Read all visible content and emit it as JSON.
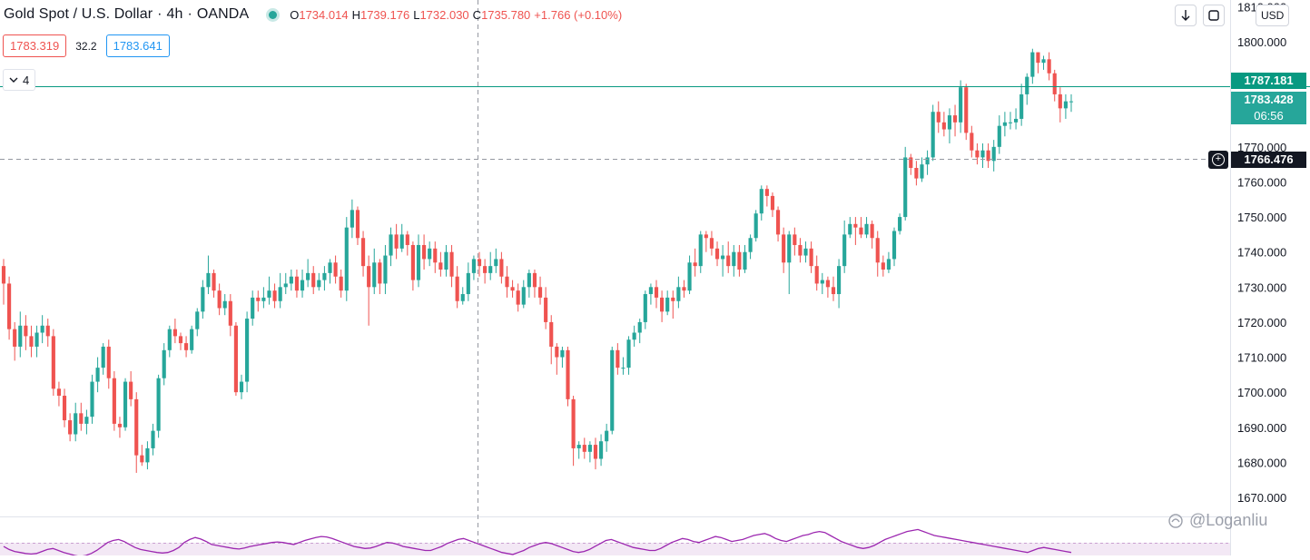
{
  "legend": {
    "symbol": "Gold Spot / U.S. Dollar",
    "sep": "·",
    "interval": "4h",
    "broker": "OANDA",
    "o_key": "O",
    "o": "1734.014",
    "h_key": "H",
    "h": "1739.176",
    "l_key": "L",
    "l": "1732.030",
    "c_key": "C",
    "c": "1735.780",
    "change": "+1.766 (+0.10%)"
  },
  "trade": {
    "sell": "1783.319",
    "spread": "32.2",
    "buy": "1783.641"
  },
  "indicators_toggle": {
    "count": "4"
  },
  "toolbar": {
    "currency": "USD"
  },
  "price_tags": {
    "horizontal_line": "1787.181",
    "last_price": "1783.428",
    "countdown": "06:56",
    "crosshair": "1766.476"
  },
  "watermark": "@Loganliu",
  "colors": {
    "up": "#26a69a",
    "down": "#ef5350",
    "line": "#089981",
    "oscillator": "#9c27b0"
  },
  "chart_data": {
    "type": "candlestick",
    "ylim": [
      1663,
      1812
    ],
    "y_ticks": [
      "1670.000",
      "1680.000",
      "1690.000",
      "1700.000",
      "1710.000",
      "1720.000",
      "1730.000",
      "1740.000",
      "1750.000",
      "1760.000",
      "1770.000",
      "1780.000",
      "1800.000",
      "1810.000"
    ],
    "y_tick_values": [
      1670,
      1680,
      1690,
      1700,
      1710,
      1720,
      1730,
      1740,
      1750,
      1760,
      1770,
      1780,
      1800,
      1810
    ],
    "horizontal_line": 1787.181,
    "crosshair_price": 1766.476,
    "last_price": 1783.428,
    "candles": [
      [
        1736,
        1731,
        1738,
        1725
      ],
      [
        1731,
        1718,
        1733,
        1715
      ],
      [
        1718,
        1713,
        1720,
        1709
      ],
      [
        1713,
        1719,
        1723,
        1710
      ],
      [
        1719,
        1716,
        1722,
        1712
      ],
      [
        1716,
        1713,
        1719,
        1710
      ],
      [
        1713,
        1717,
        1719,
        1710
      ],
      [
        1717,
        1719,
        1722,
        1714
      ],
      [
        1719,
        1716,
        1721,
        1713
      ],
      [
        1716,
        1701,
        1718,
        1699
      ],
      [
        1701,
        1699,
        1703,
        1696
      ],
      [
        1699,
        1692,
        1701,
        1690
      ],
      [
        1692,
        1688,
        1694,
        1686
      ],
      [
        1688,
        1694,
        1697,
        1686
      ],
      [
        1694,
        1691,
        1697,
        1689
      ],
      [
        1691,
        1693,
        1695,
        1688
      ],
      [
        1693,
        1703,
        1705,
        1691
      ],
      [
        1703,
        1707,
        1710,
        1700
      ],
      [
        1707,
        1713,
        1714,
        1705
      ],
      [
        1713,
        1704,
        1715,
        1701
      ],
      [
        1704,
        1691,
        1706,
        1689
      ],
      [
        1691,
        1690,
        1693,
        1687
      ],
      [
        1690,
        1703,
        1704,
        1689
      ],
      [
        1703,
        1698,
        1706,
        1696
      ],
      [
        1698,
        1682,
        1700,
        1677
      ],
      [
        1682,
        1680,
        1685,
        1679
      ],
      [
        1680,
        1684,
        1686,
        1678
      ],
      [
        1684,
        1689,
        1691,
        1682
      ],
      [
        1689,
        1704,
        1705,
        1687
      ],
      [
        1704,
        1712,
        1714,
        1702
      ],
      [
        1712,
        1718,
        1719,
        1710
      ],
      [
        1718,
        1716,
        1721,
        1714
      ],
      [
        1716,
        1714,
        1717,
        1712
      ],
      [
        1714,
        1712,
        1716,
        1710
      ],
      [
        1712,
        1718,
        1719,
        1711
      ],
      [
        1718,
        1723,
        1724,
        1716
      ],
      [
        1723,
        1730,
        1732,
        1721
      ],
      [
        1730,
        1734,
        1739,
        1728
      ],
      [
        1734,
        1729,
        1735,
        1727
      ],
      [
        1729,
        1724,
        1731,
        1722
      ],
      [
        1724,
        1726,
        1728,
        1722
      ],
      [
        1726,
        1719,
        1728,
        1716
      ],
      [
        1719,
        1700,
        1720,
        1699
      ],
      [
        1700,
        1703,
        1705,
        1698
      ],
      [
        1703,
        1721,
        1723,
        1700
      ],
      [
        1721,
        1727,
        1729,
        1719
      ],
      [
        1727,
        1726,
        1729,
        1723
      ],
      [
        1726,
        1727,
        1730,
        1724
      ],
      [
        1727,
        1729,
        1733,
        1725
      ],
      [
        1729,
        1726,
        1731,
        1724
      ],
      [
        1726,
        1730,
        1734,
        1724
      ],
      [
        1730,
        1731,
        1734,
        1728
      ],
      [
        1731,
        1733,
        1735,
        1729
      ],
      [
        1733,
        1729,
        1735,
        1727
      ],
      [
        1729,
        1732,
        1735,
        1727
      ],
      [
        1732,
        1734,
        1738,
        1730
      ],
      [
        1734,
        1730,
        1736,
        1728
      ],
      [
        1730,
        1732,
        1734,
        1729
      ],
      [
        1732,
        1734,
        1736,
        1729
      ],
      [
        1734,
        1737,
        1738,
        1731
      ],
      [
        1737,
        1733,
        1739,
        1731
      ],
      [
        1733,
        1729,
        1735,
        1727
      ],
      [
        1729,
        1747,
        1750,
        1726
      ],
      [
        1747,
        1752,
        1755,
        1744
      ],
      [
        1752,
        1744,
        1753,
        1742
      ],
      [
        1744,
        1736,
        1746,
        1733
      ],
      [
        1736,
        1730,
        1739,
        1719
      ],
      [
        1730,
        1737,
        1741,
        1728
      ],
      [
        1737,
        1731,
        1738,
        1728
      ],
      [
        1731,
        1739,
        1742,
        1728
      ],
      [
        1739,
        1745,
        1747,
        1736
      ],
      [
        1745,
        1741,
        1748,
        1738
      ],
      [
        1741,
        1745,
        1748,
        1740
      ],
      [
        1745,
        1742,
        1746,
        1739
      ],
      [
        1742,
        1732,
        1743,
        1729
      ],
      [
        1732,
        1742,
        1745,
        1730
      ],
      [
        1742,
        1738,
        1745,
        1735
      ],
      [
        1738,
        1741,
        1743,
        1736
      ],
      [
        1741,
        1737,
        1743,
        1734
      ],
      [
        1737,
        1735,
        1740,
        1733
      ],
      [
        1735,
        1740,
        1742,
        1733
      ],
      [
        1740,
        1733,
        1742,
        1730
      ],
      [
        1733,
        1726,
        1736,
        1724
      ],
      [
        1726,
        1728,
        1730,
        1725
      ],
      [
        1728,
        1734,
        1737,
        1726
      ],
      [
        1734,
        1738,
        1739,
        1732
      ],
      [
        1738,
        1736,
        1740,
        1733
      ],
      [
        1736,
        1734,
        1738,
        1731
      ],
      [
        1734,
        1736,
        1740,
        1732
      ],
      [
        1736,
        1738,
        1741,
        1734
      ],
      [
        1738,
        1733,
        1740,
        1731
      ],
      [
        1733,
        1730,
        1736,
        1727
      ],
      [
        1730,
        1729,
        1732,
        1727
      ],
      [
        1729,
        1725,
        1731,
        1723
      ],
      [
        1725,
        1730,
        1732,
        1724
      ],
      [
        1730,
        1734,
        1735,
        1727
      ],
      [
        1734,
        1730,
        1735,
        1727
      ],
      [
        1730,
        1727,
        1733,
        1725
      ],
      [
        1727,
        1720,
        1730,
        1718
      ],
      [
        1720,
        1713,
        1722,
        1708
      ],
      [
        1713,
        1710,
        1714,
        1705
      ],
      [
        1710,
        1712,
        1713,
        1707
      ],
      [
        1712,
        1698,
        1713,
        1696
      ],
      [
        1698,
        1684,
        1699,
        1679
      ],
      [
        1684,
        1685,
        1686,
        1681
      ],
      [
        1685,
        1683,
        1687,
        1681
      ],
      [
        1683,
        1685,
        1686,
        1680
      ],
      [
        1685,
        1681,
        1687,
        1678
      ],
      [
        1681,
        1686,
        1688,
        1679
      ],
      [
        1686,
        1689,
        1691,
        1683
      ],
      [
        1689,
        1712,
        1713,
        1688
      ],
      [
        1712,
        1707,
        1714,
        1705
      ],
      [
        1707,
        1707,
        1710,
        1705
      ],
      [
        1707,
        1715,
        1716,
        1705
      ],
      [
        1715,
        1717,
        1719,
        1713
      ],
      [
        1717,
        1720,
        1721,
        1714
      ],
      [
        1720,
        1728,
        1729,
        1718
      ],
      [
        1728,
        1730,
        1731,
        1725
      ],
      [
        1730,
        1727,
        1732,
        1724
      ],
      [
        1727,
        1723,
        1729,
        1720
      ],
      [
        1723,
        1727,
        1729,
        1722
      ],
      [
        1727,
        1726,
        1729,
        1721
      ],
      [
        1726,
        1730,
        1733,
        1724
      ],
      [
        1730,
        1729,
        1732,
        1727
      ],
      [
        1729,
        1737,
        1739,
        1728
      ],
      [
        1737,
        1736,
        1741,
        1733
      ],
      [
        1736,
        1745,
        1746,
        1734
      ],
      [
        1745,
        1744,
        1746,
        1740
      ],
      [
        1744,
        1741,
        1746,
        1739
      ],
      [
        1741,
        1738,
        1743,
        1736
      ],
      [
        1738,
        1739,
        1742,
        1733
      ],
      [
        1739,
        1736,
        1743,
        1734
      ],
      [
        1736,
        1740,
        1742,
        1733
      ],
      [
        1740,
        1735,
        1742,
        1733
      ],
      [
        1735,
        1740,
        1742,
        1734
      ],
      [
        1740,
        1744,
        1745,
        1738
      ],
      [
        1744,
        1751,
        1752,
        1743
      ],
      [
        1751,
        1758,
        1759,
        1749
      ],
      [
        1758,
        1756,
        1759,
        1753
      ],
      [
        1756,
        1752,
        1757,
        1750
      ],
      [
        1752,
        1745,
        1753,
        1743
      ],
      [
        1745,
        1737,
        1747,
        1734
      ],
      [
        1737,
        1745,
        1746,
        1728
      ],
      [
        1745,
        1742,
        1747,
        1739
      ],
      [
        1742,
        1739,
        1744,
        1737
      ],
      [
        1739,
        1741,
        1743,
        1737
      ],
      [
        1741,
        1736,
        1743,
        1734
      ],
      [
        1736,
        1731,
        1739,
        1729
      ],
      [
        1731,
        1732,
        1734,
        1728
      ],
      [
        1732,
        1730,
        1733,
        1727
      ],
      [
        1730,
        1728,
        1733,
        1726
      ],
      [
        1728,
        1736,
        1738,
        1724
      ],
      [
        1736,
        1745,
        1749,
        1734
      ],
      [
        1745,
        1748,
        1750,
        1744
      ],
      [
        1748,
        1747,
        1750,
        1742
      ],
      [
        1747,
        1745,
        1750,
        1744
      ],
      [
        1745,
        1748,
        1750,
        1744
      ],
      [
        1748,
        1744,
        1749,
        1741
      ],
      [
        1744,
        1737,
        1746,
        1733
      ],
      [
        1737,
        1735,
        1739,
        1733
      ],
      [
        1735,
        1738,
        1740,
        1734
      ],
      [
        1738,
        1746,
        1747,
        1736
      ],
      [
        1746,
        1750,
        1751,
        1745
      ],
      [
        1750,
        1767,
        1770,
        1749
      ],
      [
        1767,
        1764,
        1768,
        1762
      ],
      [
        1764,
        1761,
        1766,
        1759
      ],
      [
        1761,
        1765,
        1767,
        1760
      ],
      [
        1765,
        1767,
        1769,
        1762
      ],
      [
        1767,
        1780,
        1782,
        1766
      ],
      [
        1780,
        1777,
        1783,
        1774
      ],
      [
        1777,
        1775,
        1780,
        1773
      ],
      [
        1775,
        1779,
        1781,
        1771
      ],
      [
        1779,
        1777,
        1782,
        1773
      ],
      [
        1777,
        1787,
        1789,
        1774
      ],
      [
        1787,
        1774,
        1788,
        1772
      ],
      [
        1774,
        1769,
        1776,
        1767
      ],
      [
        1769,
        1767,
        1771,
        1765
      ],
      [
        1767,
        1769,
        1771,
        1764
      ],
      [
        1769,
        1766,
        1771,
        1764
      ],
      [
        1766,
        1770,
        1772,
        1763
      ],
      [
        1770,
        1776,
        1779,
        1768
      ],
      [
        1776,
        1777,
        1780,
        1773
      ],
      [
        1777,
        1777,
        1780,
        1775
      ],
      [
        1777,
        1778,
        1781,
        1775
      ],
      [
        1778,
        1785,
        1788,
        1776
      ],
      [
        1785,
        1790,
        1791,
        1782
      ],
      [
        1790,
        1797,
        1798,
        1788
      ],
      [
        1797,
        1794,
        1797,
        1791
      ],
      [
        1794,
        1795,
        1796,
        1792
      ],
      [
        1795,
        1791,
        1797,
        1789
      ],
      [
        1791,
        1785,
        1792,
        1783
      ],
      [
        1785,
        1781,
        1787,
        1777
      ],
      [
        1781,
        1783,
        1785,
        1778
      ],
      [
        1783,
        1783,
        1785,
        1780
      ]
    ],
    "oscillator": [
      48,
      42,
      38,
      36,
      34,
      33,
      34,
      38,
      42,
      44,
      40,
      36,
      33,
      30,
      28,
      30,
      34,
      40,
      48,
      56,
      60,
      62,
      58,
      52,
      46,
      42,
      40,
      38,
      36,
      35,
      36,
      40,
      46,
      56,
      62,
      66,
      63,
      58,
      52,
      50,
      48,
      46,
      44,
      43,
      45,
      48,
      50,
      52,
      54,
      56,
      57,
      56,
      54,
      52,
      56,
      60,
      63,
      66,
      68,
      67,
      64,
      60,
      56,
      52,
      48,
      46,
      44,
      45,
      48,
      52,
      56,
      55,
      52,
      48,
      46,
      44,
      42,
      40,
      40,
      44,
      48,
      54,
      58,
      62,
      64,
      60,
      56,
      52,
      48,
      44,
      40,
      36,
      34,
      32,
      36,
      40,
      46,
      50,
      54,
      56,
      54,
      50,
      46,
      42,
      38,
      36,
      38,
      42,
      48,
      54,
      60,
      62,
      58,
      54,
      50,
      46,
      44,
      42,
      40,
      40,
      44,
      50,
      56,
      60,
      64,
      62,
      58,
      56,
      60,
      64,
      68,
      66,
      62,
      58,
      60,
      62,
      66,
      70,
      72,
      74,
      70,
      64,
      60,
      58,
      62,
      66,
      70,
      72,
      76,
      78,
      76,
      70,
      64,
      58,
      54,
      50,
      46,
      44,
      46,
      50,
      56,
      62,
      66,
      70,
      74,
      78,
      80,
      82,
      78,
      74,
      70,
      68,
      66,
      64,
      62,
      60,
      58,
      56,
      54,
      52,
      50,
      48,
      46,
      44,
      42,
      40,
      38,
      36,
      40,
      44,
      46,
      44,
      42,
      40,
      38,
      36
    ]
  }
}
